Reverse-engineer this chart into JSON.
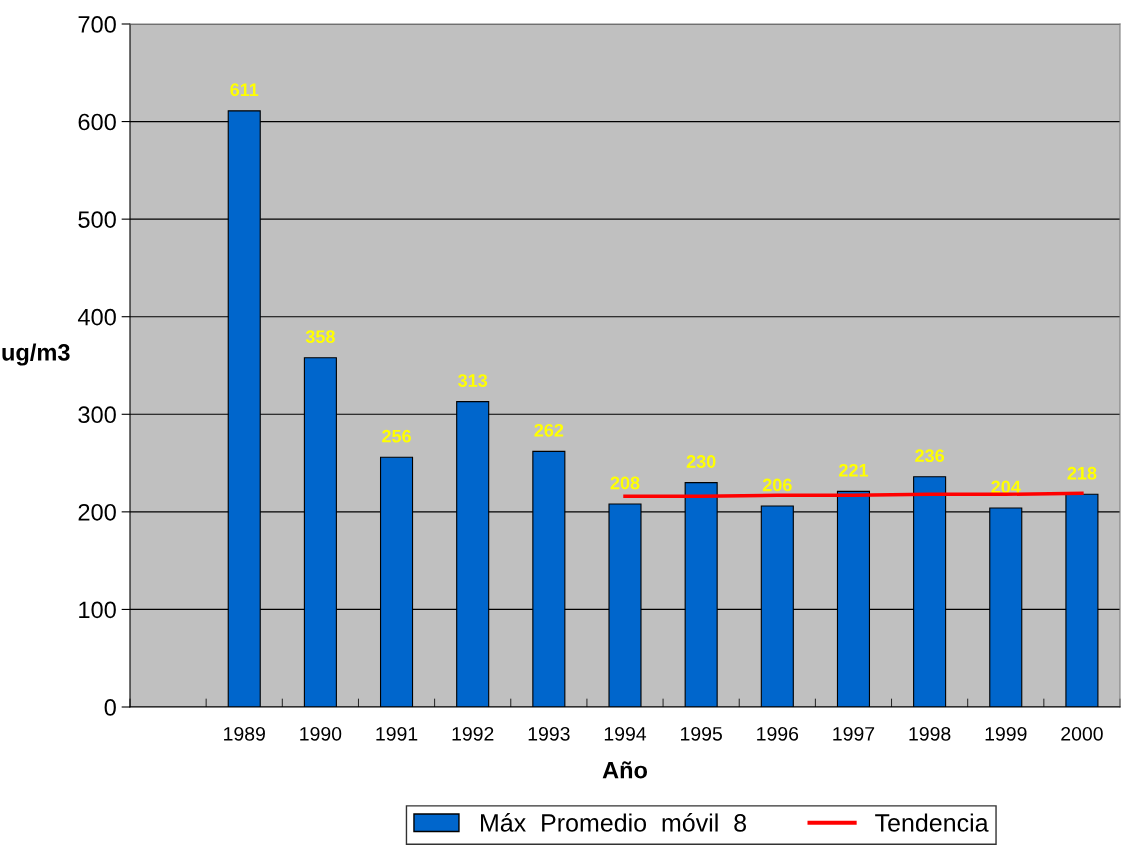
{
  "chart_data": {
    "type": "bar",
    "xlabel": "Año",
    "ylabel": "ug/m3",
    "categories": [
      null,
      "1989",
      "1990",
      "1991",
      "1992",
      "1993",
      "1994",
      "1995",
      "1996",
      "1997",
      "1998",
      "1999",
      "2000"
    ],
    "series": [
      {
        "name": "Máx  Promedio  móvil  8",
        "color": "#0066cc",
        "values": [
          null,
          611,
          358,
          256,
          313,
          262,
          208,
          230,
          206,
          221,
          236,
          204,
          218
        ],
        "value_labels": [
          null,
          "611",
          "358",
          "256",
          "313",
          "262",
          "208",
          "230",
          "206",
          "221",
          "236",
          "204",
          "218"
        ]
      },
      {
        "name": "Tendencia",
        "type": "line",
        "color": "#ff0000",
        "values": [
          null,
          null,
          null,
          null,
          null,
          null,
          216,
          216,
          217,
          217,
          218,
          218,
          219
        ]
      }
    ],
    "ylim": [
      0,
      700
    ],
    "yticks": [
      0,
      100,
      200,
      300,
      400,
      500,
      600,
      700
    ],
    "grid": "y",
    "legend": "bottom",
    "marker": "none",
    "line_style": "solid"
  }
}
